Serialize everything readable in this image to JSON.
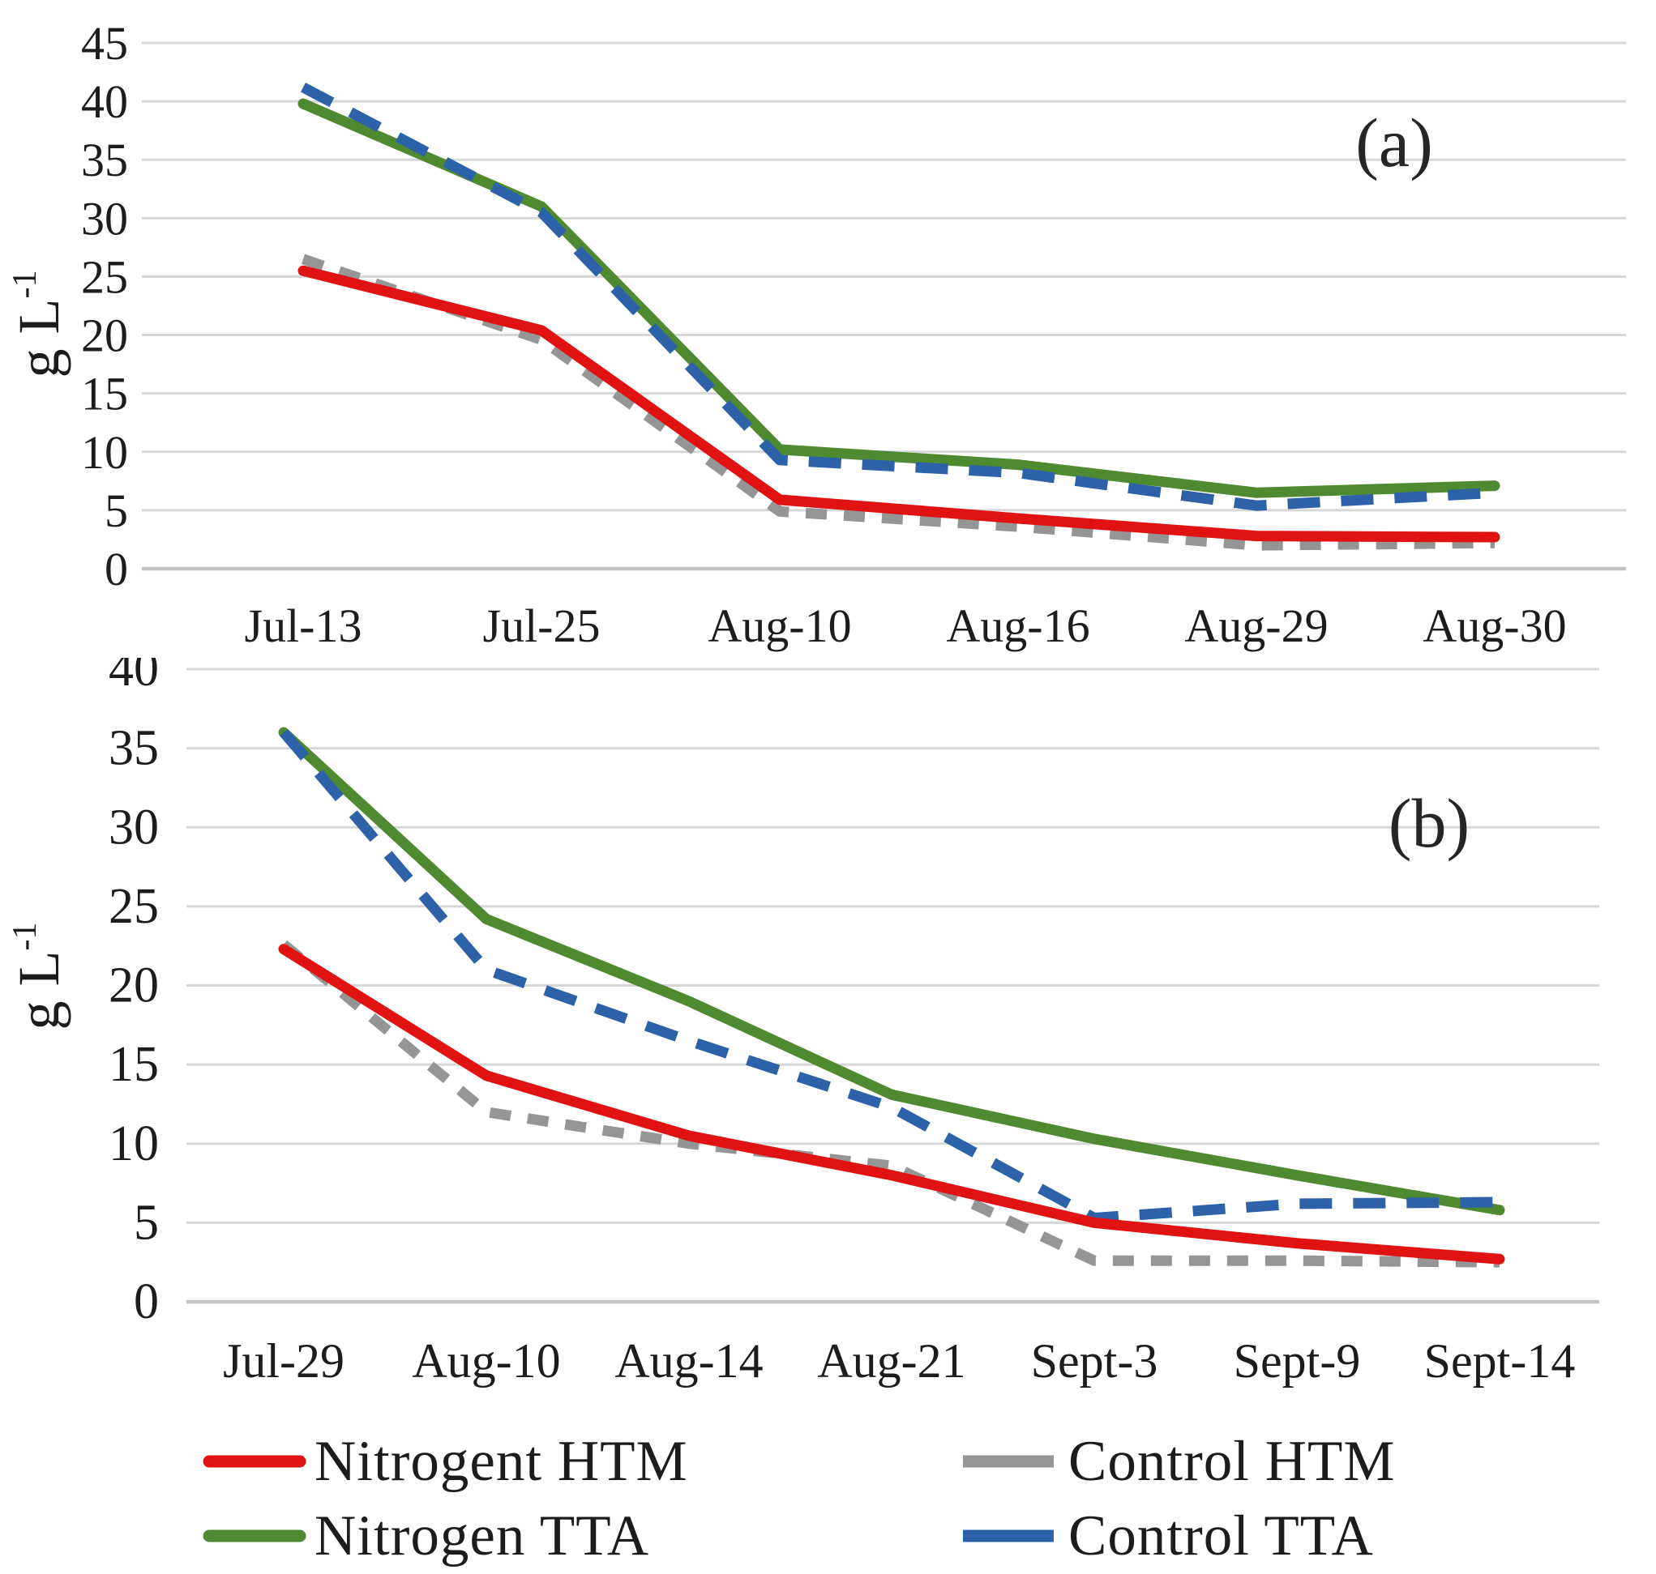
{
  "figure": {
    "y_axis_unit": {
      "base": "g L",
      "sup": "-1"
    },
    "text_color": "#1c1c1c",
    "grid_color": "#d7d7d7",
    "axis_zero_color": "#c2c2c2",
    "background": "#ffffff"
  },
  "chart_data": [
    {
      "id": "a",
      "type": "line",
      "annotation": "(a)",
      "ylabel": "g L-1",
      "xlabel": "",
      "grid": true,
      "legend_position": "bottom-shared",
      "categories": [
        "Jul-13",
        "Jul-25",
        "Aug-10",
        "Aug-16",
        "Aug-29",
        "Aug-30"
      ],
      "ylim": [
        0,
        45
      ],
      "ytick_step": 5,
      "yticks": [
        45,
        40,
        35,
        30,
        25,
        20,
        15,
        10,
        5,
        0
      ],
      "series": [
        {
          "name": "Nitrogen TTA",
          "color": "#4f8a31",
          "style": "solid",
          "dash": "none",
          "values": [
            39.8,
            31.0,
            10.2,
            8.9,
            6.5,
            7.1
          ]
        },
        {
          "name": "Control TTA",
          "color": "#2d62a8",
          "style": "dashed",
          "dash": "40 26",
          "values": [
            41.2,
            30.5,
            9.3,
            8.2,
            5.4,
            6.5
          ]
        },
        {
          "name": "Control HTM",
          "color": "#959595",
          "style": "dashed",
          "dash": "26 21",
          "values": [
            26.5,
            19.6,
            4.9,
            3.6,
            2.0,
            2.2
          ]
        },
        {
          "name": "Nitrogent HTM",
          "color": "#e01212",
          "style": "solid",
          "dash": "none",
          "values": [
            25.5,
            20.4,
            5.9,
            4.3,
            2.8,
            2.7
          ]
        }
      ]
    },
    {
      "id": "b",
      "type": "line",
      "annotation": "(b)",
      "ylabel": "g L-1",
      "xlabel": "",
      "grid": true,
      "legend_position": "bottom-shared",
      "categories": [
        "Jul-29",
        "Aug-10",
        "Aug-14",
        "Aug-21",
        "Sept-3",
        "Sept-9",
        "Sept-14"
      ],
      "ylim": [
        0,
        40
      ],
      "ytick_step": 5,
      "yticks": [
        40,
        35,
        30,
        25,
        20,
        15,
        10,
        5,
        0
      ],
      "series": [
        {
          "name": "Nitrogen TTA",
          "color": "#4f8a31",
          "style": "solid",
          "dash": "none",
          "values": [
            36.0,
            24.2,
            19.0,
            13.1,
            10.3,
            8.0,
            5.8
          ]
        },
        {
          "name": "Control TTA",
          "color": "#2d62a8",
          "style": "dashed",
          "dash": "40 26",
          "values": [
            36.0,
            21.0,
            16.5,
            12.3,
            5.3,
            6.2,
            6.3
          ]
        },
        {
          "name": "Control HTM",
          "color": "#959595",
          "style": "dashed",
          "dash": "26 21",
          "values": [
            22.6,
            12.0,
            10.0,
            8.6,
            2.6,
            2.6,
            2.5
          ]
        },
        {
          "name": "Nitrogent HTM",
          "color": "#e01212",
          "style": "solid",
          "dash": "none",
          "values": [
            22.3,
            14.3,
            10.5,
            8.0,
            5.0,
            3.7,
            2.7
          ]
        }
      ]
    }
  ],
  "legend": {
    "items": [
      {
        "label": "Nitrogent HTM",
        "color": "#e01212",
        "marker_dash": "none"
      },
      {
        "label": "Control HTM",
        "color": "#959595",
        "marker_dash": "45 21"
      },
      {
        "label": "Nitrogen TTA",
        "color": "#4f8a31",
        "marker_dash": "none"
      },
      {
        "label": "Control TTA",
        "color": "#2d62a8",
        "marker_dash": "38 30"
      }
    ]
  }
}
